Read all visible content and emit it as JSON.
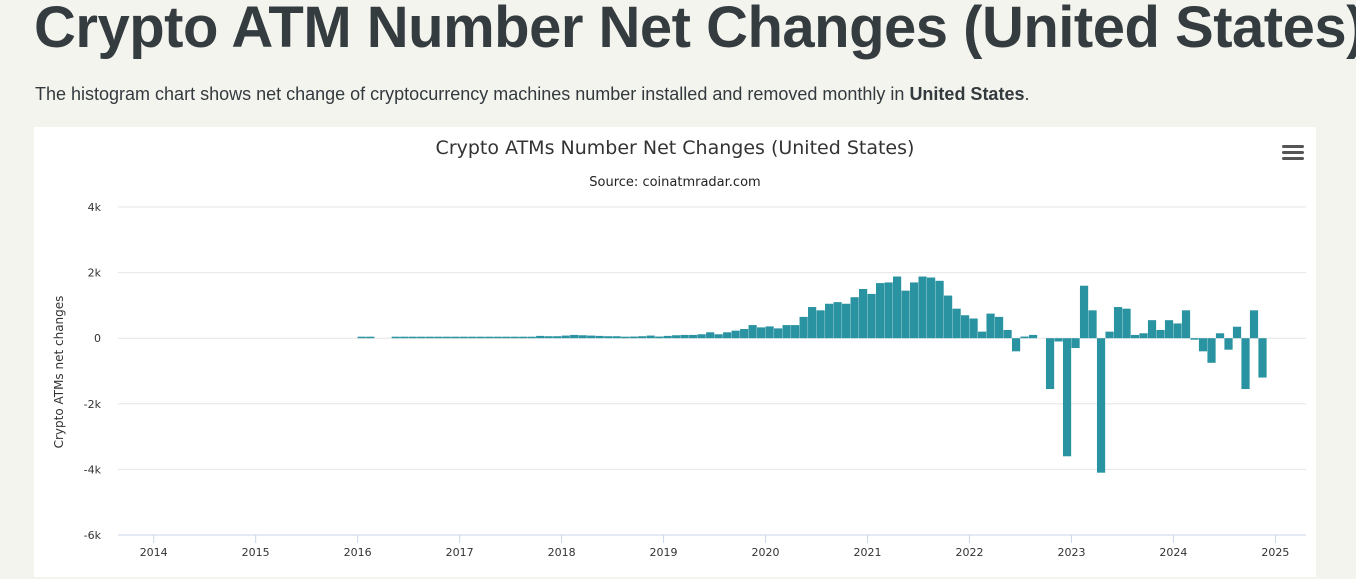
{
  "header": {
    "title": "Crypto ATM Number Net Changes (United States)",
    "title_dot": ".",
    "intro_text": "The histogram chart shows net change of cryptocurrency machines number installed and removed monthly in ",
    "intro_bold": "United States",
    "intro_end": "."
  },
  "colors": {
    "bar": "#2a93a1",
    "accent_dot": "#b9a661",
    "grid": "#e6e6e6"
  },
  "menu": {
    "icon": "hamburger-menu-icon"
  },
  "chart_data": {
    "type": "bar",
    "title": "Crypto ATMs Number Net Changes (United States)",
    "subtitle": "Source: coinatmradar.com",
    "ylabel": "Crypto ATMs net changes",
    "xlabel": "",
    "ylim": [
      -6000,
      4000
    ],
    "yticks": [
      4000,
      2000,
      0,
      -2000,
      -4000,
      -6000
    ],
    "ytick_labels": [
      "4k",
      "2k",
      "0",
      "-2k",
      "-4k",
      "-6k"
    ],
    "xlim": [
      2013.65,
      2025.3
    ],
    "xticks": [
      2014,
      2015,
      2016,
      2017,
      2018,
      2019,
      2020,
      2021,
      2022,
      2023,
      2024,
      2025
    ],
    "xtick_labels": [
      "2014",
      "2015",
      "2016",
      "2017",
      "2018",
      "2019",
      "2020",
      "2021",
      "2022",
      "2023",
      "2024",
      "2025"
    ],
    "grid": true,
    "legend": "none",
    "series": [
      {
        "start": "2016-01",
        "values": [
          20,
          20,
          0,
          0,
          20,
          15,
          25,
          30,
          20,
          25,
          30,
          20,
          30,
          25,
          30,
          35,
          30,
          35,
          40,
          25,
          40,
          70,
          60,
          60,
          80,
          100,
          90,
          80,
          70,
          60,
          60,
          40,
          50,
          60,
          80,
          50,
          70,
          90,
          100,
          100,
          120,
          180,
          120,
          180,
          230,
          280,
          400,
          330,
          360,
          300,
          400,
          400,
          650,
          950,
          850,
          1050,
          1100,
          1050,
          1250,
          1500,
          1350,
          1680,
          1700,
          1880,
          1450,
          1700,
          1880,
          1850,
          1750,
          1300,
          900,
          700,
          600,
          200,
          750,
          650,
          250,
          -400,
          50,
          100,
          0,
          -1550,
          -100,
          -3600,
          -300,
          1600,
          850,
          -4100,
          200,
          950,
          900,
          100,
          150,
          550,
          250,
          550,
          450,
          850,
          -20,
          -400,
          -750,
          150,
          -350,
          350,
          -1550,
          850,
          -1200
        ]
      }
    ]
  }
}
